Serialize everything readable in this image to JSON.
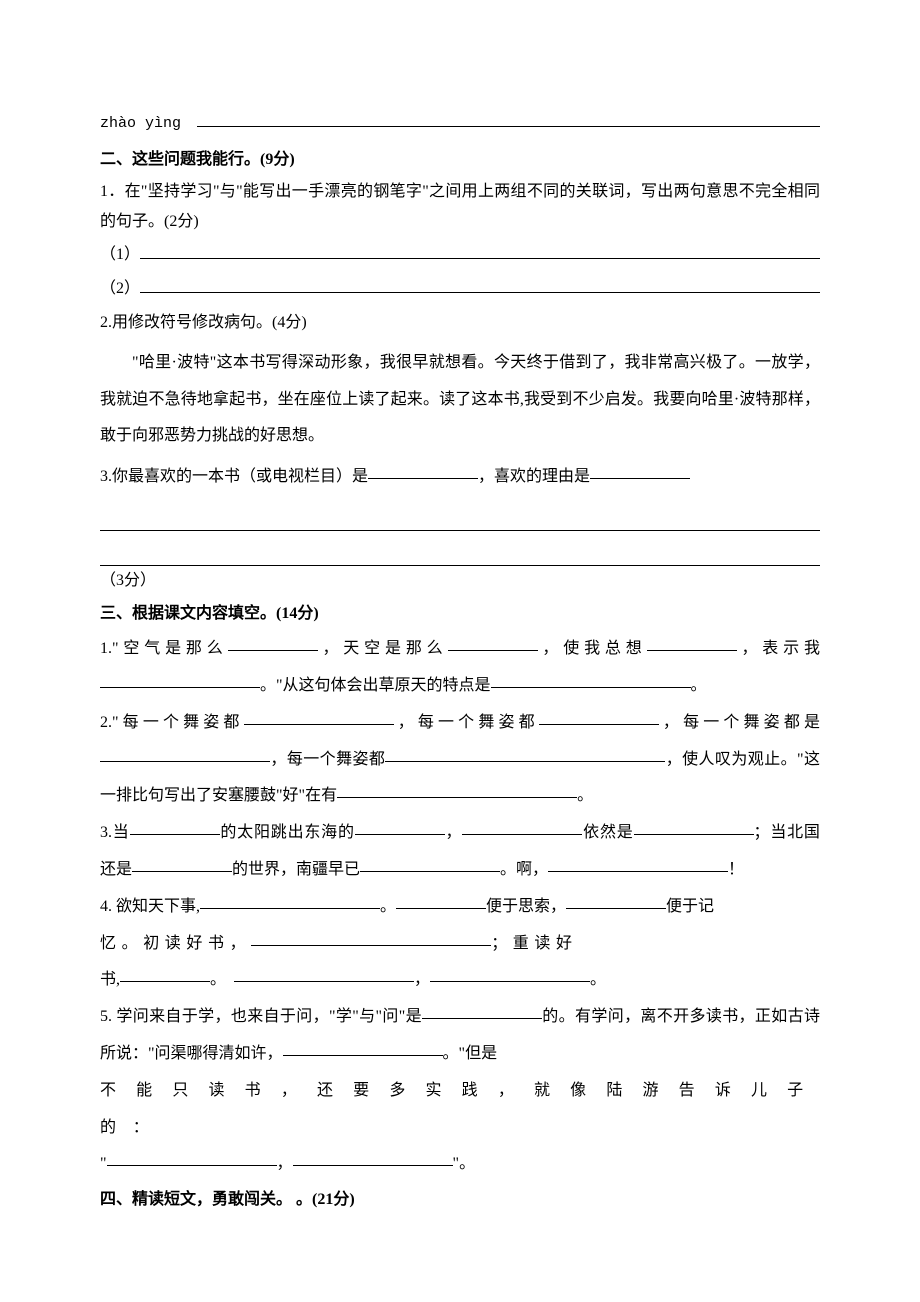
{
  "background_color": "#ffffff",
  "text_color": "#000000",
  "base_fontsize": 16,
  "pinyin_row": {
    "label": "zhào yìng"
  },
  "section2": {
    "heading": "二、这些问题我能行。(9分)",
    "q1": {
      "text": "1．在\"坚持学习\"与\"能写出一手漂亮的钢笔字\"之间用上两组不同的关联词，写出两句意思不完全相同的句子。(2分)",
      "sub1_label": "（1）",
      "sub2_label": "（2）"
    },
    "q2": {
      "label": "2.用修改符号修改病句。(4分)",
      "passage": "\"哈里·波特\"这本书写得深动形象，我很早就想看。今天终于借到了，我非常高兴极了。一放学，我就迫不急待地拿起书，坐在座位上读了起来。读了这本书,我受到不少启发。我要向哈里·波特那样，敢于向邪恶势力挑战的好思想。"
    },
    "q3": {
      "prefix": "3.你最喜欢的一本书（或电视栏目）是",
      "mid": "，喜欢的理由是",
      "points": "（3分）"
    }
  },
  "section3": {
    "heading": "三、根据课文内容填空。(14分)",
    "q1": {
      "p1": "1.\"空气是那么",
      "p2": "，天空是那么",
      "p3": "，使我总想",
      "p4": "，表示我",
      "p5": "。\"从这句体会出草原天的特点是",
      "p6": "。"
    },
    "q2": {
      "p1": "2.\"每一个舞姿都",
      "p2": "，每一个舞姿都",
      "p3": "，每一个舞姿都是",
      "p4": "，每一个舞姿都",
      "p5": "，使人叹为观止。\"这一排比句写出了安塞腰鼓\"好\"在有",
      "p6": "。"
    },
    "q3": {
      "p1": "3.当",
      "p2": "的太阳跳出东海的",
      "p3": "，",
      "p4": "依然是",
      "p5": "；当北国还是",
      "p6": "的世界，南疆早已",
      "p7": "。啊，",
      "p8": "！"
    },
    "q4": {
      "p1": "4. 欲知天下事,",
      "p2": "。",
      "p3": "便于思索，",
      "p4_pre": "便于记",
      "p4_line2a": "忆。初读好书，",
      "p5": "；重读好",
      "p6_pre": "书,",
      "p7": "。",
      "p8": "，",
      "p9": "。"
    },
    "q5": {
      "p1": "5. 学问来自于学，也来自于问，\"学\"与\"问\"是",
      "p2": "的。有学问，离不开多读书，正如古诗所说：\"问渠哪得清如许，",
      "p3_pre": "。\"但是",
      "p3_line": "不能只读书，还要多实践，就像陆游告诉儿子的：",
      "p4": "\"",
      "p5": "，",
      "p6": "\"。"
    }
  },
  "section4": {
    "heading": "四、精读短文，勇敢闯关。 。(21分)"
  }
}
